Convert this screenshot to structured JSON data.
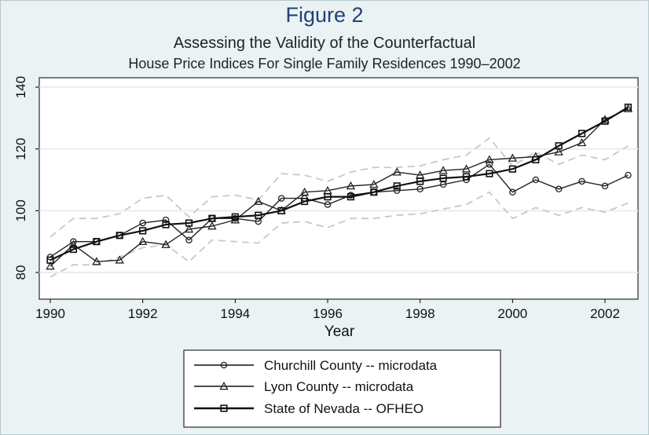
{
  "figure": {
    "title": "Figure 2",
    "subtitle1": "Assessing the Validity of the Counterfactual",
    "subtitle2": "House Price Indices For Single Family Residences 1990–2002"
  },
  "chart_data": {
    "type": "line",
    "title": "Figure 2",
    "subtitle": "Assessing the Validity of the Counterfactual — House Price Indices For Single Family Residences 1990–2002",
    "xlabel": "Year",
    "ylabel": "",
    "xlim": [
      1990,
      2002.75
    ],
    "ylim": [
      74,
      142
    ],
    "xticks": [
      1990,
      1992,
      1994,
      1996,
      1998,
      2000,
      2002
    ],
    "yticks": [
      80,
      100,
      120,
      140
    ],
    "grid": true,
    "legend_position": "bottom",
    "x": [
      1990,
      1990.5,
      1991,
      1991.5,
      1992,
      1992.5,
      1993,
      1993.5,
      1994,
      1994.5,
      1995,
      1995.5,
      1996,
      1996.5,
      1997,
      1997.5,
      1998,
      1998.5,
      1999,
      1999.5,
      2000,
      2000.5,
      2001,
      2001.5,
      2002,
      2002.5
    ],
    "series": [
      {
        "name": "Churchill County -- microdata",
        "marker": "circle",
        "color": "#222222",
        "values": [
          85,
          90,
          90,
          92,
          96,
          97,
          90.5,
          97.5,
          97.5,
          96.5,
          104,
          104,
          102,
          105,
          106,
          106.5,
          107,
          108.5,
          110,
          115,
          106,
          110,
          107,
          109.5,
          108,
          111.5
        ]
      },
      {
        "name": "Lyon County -- microdata",
        "marker": "triangle",
        "color": "#222222",
        "values": [
          82,
          89,
          83.5,
          84,
          90,
          89,
          94,
          95,
          97,
          103,
          100,
          106,
          106.5,
          108,
          108.5,
          112.5,
          111.5,
          113,
          113.5,
          116.5,
          117,
          117.5,
          119,
          122,
          129.5,
          133
        ]
      },
      {
        "name": "State of Nevada -- OFHEO",
        "marker": "square",
        "color": "#111111",
        "values": [
          84,
          87.5,
          90,
          92,
          93.5,
          95.5,
          96,
          97.5,
          98,
          98.5,
          100,
          103,
          104.5,
          104.5,
          106,
          108,
          109.5,
          110.5,
          111,
          112,
          113.5,
          116.5,
          121,
          125,
          129,
          133.5
        ]
      },
      {
        "name": "",
        "marker": "none",
        "color": "#c8c8c8",
        "dashed": true,
        "values": [
          91.5,
          97.5,
          97.5,
          99,
          104,
          105,
          98,
          104.5,
          105,
          103.5,
          112,
          111.5,
          109.5,
          112.5,
          114,
          114,
          114.5,
          116.5,
          118,
          123.5,
          114.5,
          119,
          115,
          118,
          116.5,
          121
        ]
      },
      {
        "name": "",
        "marker": "none",
        "color": "#c8c8c8",
        "dashed": true,
        "values": [
          78.5,
          82.5,
          82.5,
          85,
          88,
          89,
          83.5,
          90.5,
          90,
          89.5,
          96,
          96.5,
          94.5,
          97.5,
          97.5,
          98.5,
          99,
          100.5,
          102,
          106,
          97.5,
          101,
          98.5,
          101,
          99.5,
          102.5
        ]
      }
    ]
  },
  "legend": {
    "items": [
      {
        "label": "Churchill County -- microdata"
      },
      {
        "label": "Lyon County -- microdata"
      },
      {
        "label": "State of Nevada -- OFHEO"
      }
    ]
  }
}
